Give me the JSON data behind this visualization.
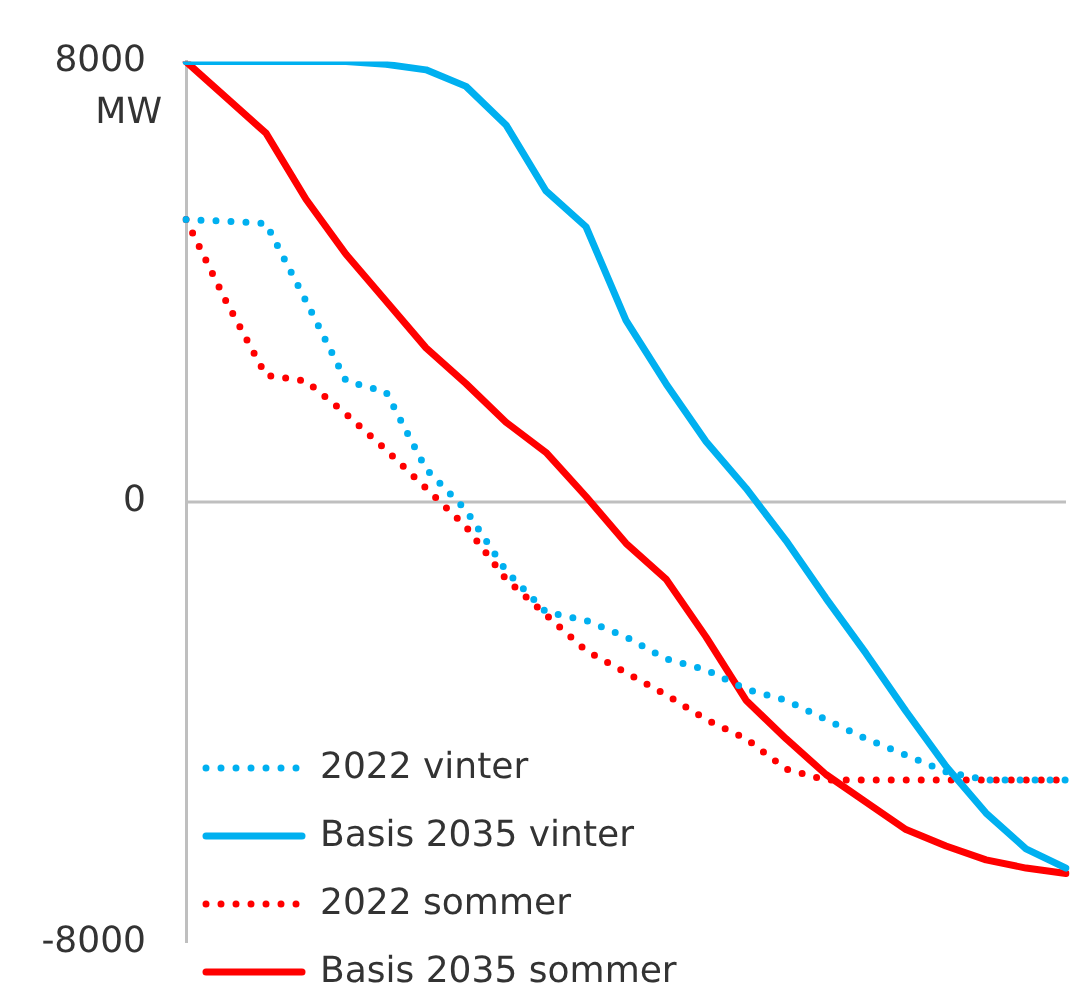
{
  "chart_data": {
    "type": "line",
    "ylabel": "MW",
    "categories": [
      null,
      null,
      null,
      null,
      null,
      null,
      null,
      null,
      null,
      null,
      null,
      null,
      null,
      null,
      null,
      null,
      null,
      null,
      null,
      null,
      null,
      null,
      null
    ],
    "series": [
      {
        "name": "2022 vinter",
        "color": "#00b0f0",
        "line_style": "dotted",
        "values": [
          5130,
          5100,
          5060,
          3650,
          2200,
          2000,
          600,
          -150,
          -1250,
          -2000,
          -2150,
          -2450,
          -2850,
          -3050,
          -3400,
          -3600,
          -3950,
          -4300,
          -4600,
          -4900,
          -5050,
          -5050,
          -5050
        ]
      },
      {
        "name": "Basis 2035 vinter",
        "color": "#00b0f0",
        "line_style": "solid",
        "values": [
          8000,
          8000,
          8000,
          8000,
          8000,
          7950,
          7850,
          7550,
          6850,
          5650,
          5000,
          3300,
          2150,
          1100,
          250,
          -700,
          -1750,
          -2750,
          -3800,
          -4800,
          -5650,
          -6300,
          -6650
        ]
      },
      {
        "name": "2022 sommer",
        "color": "#ff0000",
        "line_style": "dotted",
        "values": [
          5130,
          3650,
          2300,
          2200,
          1600,
          950,
          250,
          -450,
          -1400,
          -2050,
          -2700,
          -3100,
          -3500,
          -3950,
          -4300,
          -4850,
          -5050,
          -5050,
          -5050,
          -5050,
          -5050,
          -5050,
          -5050
        ]
      },
      {
        "name": "Basis 2035 sommer",
        "color": "#ff0000",
        "line_style": "solid",
        "values": [
          8000,
          7350,
          6700,
          5500,
          4500,
          3650,
          2800,
          2150,
          1450,
          900,
          100,
          -750,
          -1400,
          -2450,
          -3600,
          -4300,
          -4950,
          -5450,
          -5950,
          -6250,
          -6500,
          -6650,
          -6750
        ]
      }
    ],
    "ylim": [
      -8000,
      8000
    ],
    "yticks": [
      -8000,
      0,
      8000
    ],
    "ref_lines": [
      {
        "axis": "y",
        "value": 0,
        "color": "#bfbfbf"
      }
    ],
    "legend": "bottom left",
    "marker": "none",
    "grid": false
  }
}
